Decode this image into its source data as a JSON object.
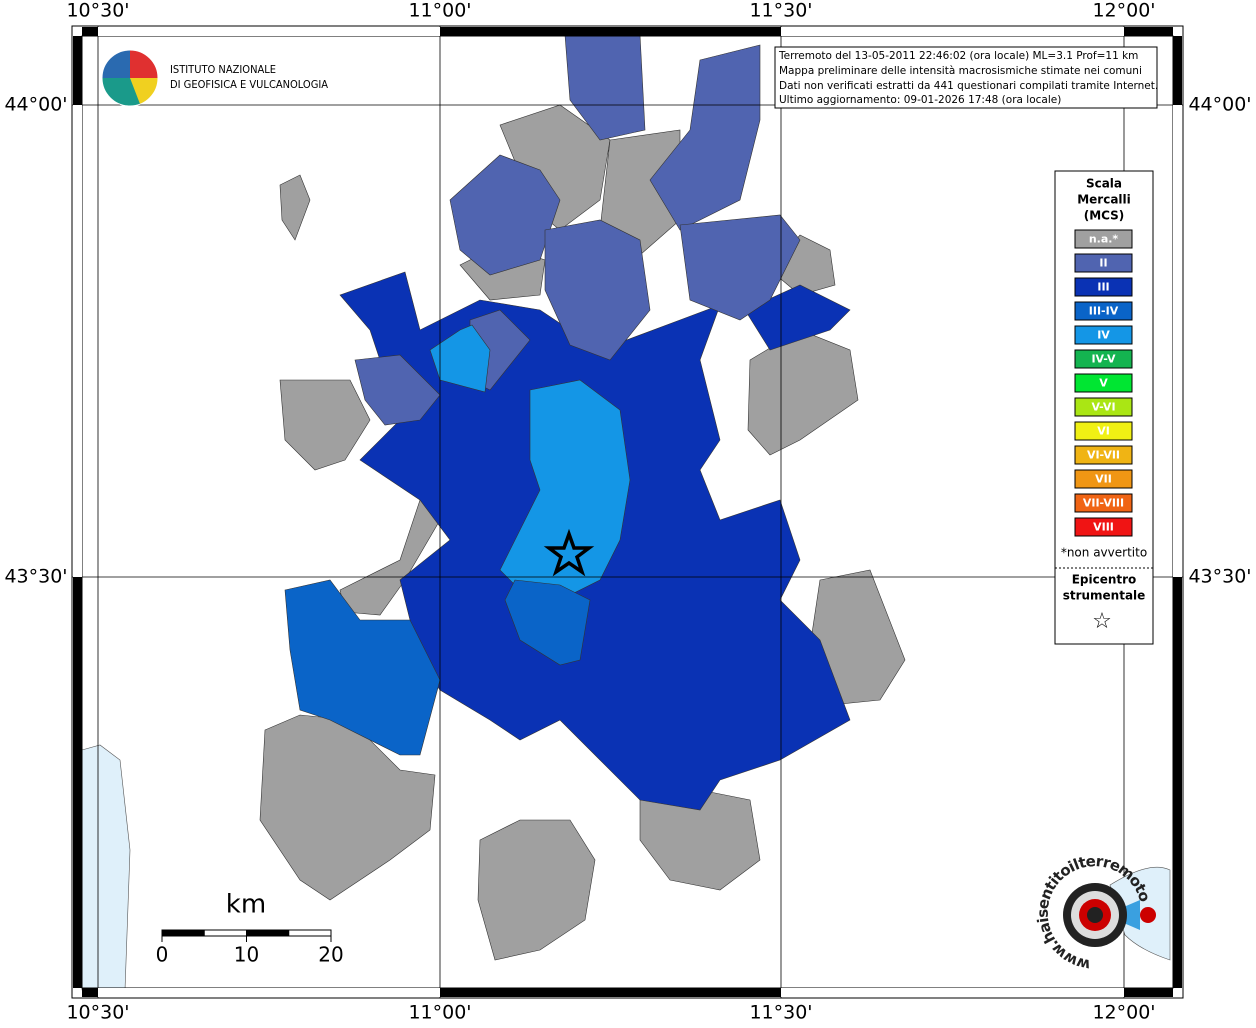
{
  "axes": {
    "top": [
      "10°30'",
      "11°00'",
      "11°30'",
      "12°00'"
    ],
    "bottom": [
      "10°30'",
      "11°00'",
      "11°30'",
      "12°00'"
    ],
    "left": [
      "44°00'",
      "43°30'"
    ],
    "right": [
      "44°00'",
      "43°30'"
    ]
  },
  "logo": {
    "lines": [
      "ISTITUTO NAZIONALE",
      "DI GEOFISICA E VULCANOLOGIA"
    ]
  },
  "info_box": {
    "lines": [
      "Terremoto del 13-05-2011 22:46:02 (ora locale) ML=3.1 Prof=11 km",
      "Mappa preliminare delle intensità macrosismiche stimate nei comuni",
      "Dati non verificati estratti da 441 questionari compilati tramite Internet.",
      "Ultimo aggiornamento: 09-01-2026 17:48 (ora locale)"
    ]
  },
  "legend": {
    "title_lines": [
      "Scala",
      "Mercalli",
      "(MCS)"
    ],
    "classes": [
      {
        "label": "n.a.*",
        "color": "#a0a0a0"
      },
      {
        "label": "II",
        "color": "#5064b0"
      },
      {
        "label": "III",
        "color": "#0a32b4"
      },
      {
        "label": "III-IV",
        "color": "#0a64c8"
      },
      {
        "label": "IV",
        "color": "#1496e6"
      },
      {
        "label": "IV-V",
        "color": "#14b450"
      },
      {
        "label": "V",
        "color": "#00e632"
      },
      {
        "label": "V-VI",
        "color": "#aae614"
      },
      {
        "label": "VI",
        "color": "#f0f014"
      },
      {
        "label": "VI-VII",
        "color": "#f0b414"
      },
      {
        "label": "VII",
        "color": "#f09614"
      },
      {
        "label": "VII-VIII",
        "color": "#f06414"
      },
      {
        "label": "VIII",
        "color": "#f01414"
      }
    ],
    "note": "*non avvertito",
    "epicenter_lines": [
      "Epicentro",
      "strumentale"
    ],
    "epicenter_symbol": "☆"
  },
  "scale_bar": {
    "unit": "km",
    "ticks": [
      0,
      10,
      20
    ]
  },
  "watermark": {
    "text": "www.haisentitoilterremoto.it"
  }
}
